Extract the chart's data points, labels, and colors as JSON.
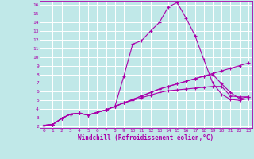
{
  "title": "",
  "xlabel": "Windchill (Refroidissement éolien,°C)",
  "xlim": [
    -0.5,
    23.5
  ],
  "ylim": [
    1.8,
    16.5
  ],
  "xticks": [
    0,
    1,
    2,
    3,
    4,
    5,
    6,
    7,
    8,
    9,
    10,
    11,
    12,
    13,
    14,
    15,
    16,
    17,
    18,
    19,
    20,
    21,
    22,
    23
  ],
  "yticks": [
    2,
    3,
    4,
    5,
    6,
    7,
    8,
    9,
    10,
    11,
    12,
    13,
    14,
    15,
    16
  ],
  "bg_color": "#c0e8e8",
  "line_color": "#aa00aa",
  "grid_color": "#ffffff",
  "lines": [
    {
      "x": [
        0,
        1,
        2,
        3,
        4,
        5,
        6,
        7,
        8,
        9,
        10,
        11,
        12,
        13,
        14,
        15,
        16,
        17,
        18,
        19,
        20,
        21,
        22,
        23
      ],
      "y": [
        2.1,
        2.2,
        2.9,
        3.4,
        3.5,
        3.3,
        3.6,
        3.9,
        4.3,
        4.7,
        5.1,
        5.5,
        5.9,
        6.3,
        6.6,
        6.9,
        7.2,
        7.5,
        7.8,
        8.1,
        8.4,
        8.7,
        9.0,
        9.3
      ]
    },
    {
      "x": [
        0,
        1,
        2,
        3,
        4,
        5,
        6,
        7,
        8,
        9,
        10,
        11,
        12,
        13,
        14,
        15,
        16,
        17,
        18,
        19,
        20,
        21,
        22,
        23
      ],
      "y": [
        2.1,
        2.2,
        2.9,
        3.4,
        3.5,
        3.3,
        3.6,
        3.9,
        4.3,
        4.7,
        5.0,
        5.3,
        5.6,
        5.9,
        6.1,
        6.2,
        6.3,
        6.4,
        6.5,
        6.6,
        6.6,
        5.5,
        5.4,
        5.4
      ]
    },
    {
      "x": [
        0,
        1,
        2,
        3,
        4,
        5,
        6,
        7,
        8,
        9,
        10,
        11,
        12,
        13,
        14,
        15,
        16,
        17,
        18,
        19,
        20,
        21,
        22,
        23
      ],
      "y": [
        2.1,
        2.2,
        2.9,
        3.4,
        3.5,
        3.3,
        3.6,
        3.9,
        4.3,
        7.8,
        11.5,
        11.9,
        13.0,
        14.0,
        15.8,
        16.3,
        14.5,
        12.5,
        9.7,
        7.0,
        5.7,
        5.1,
        5.0,
        5.2
      ]
    },
    {
      "x": [
        0,
        1,
        2,
        3,
        4,
        5,
        6,
        7,
        8,
        9,
        10,
        11,
        12,
        13,
        14,
        15,
        16,
        17,
        18,
        19,
        20,
        21,
        22,
        23
      ],
      "y": [
        2.1,
        2.2,
        2.9,
        3.4,
        3.5,
        3.3,
        3.6,
        3.9,
        4.3,
        4.7,
        5.1,
        5.5,
        5.9,
        6.3,
        6.6,
        6.9,
        7.2,
        7.5,
        7.8,
        8.0,
        6.9,
        5.9,
        5.2,
        5.4
      ]
    }
  ]
}
